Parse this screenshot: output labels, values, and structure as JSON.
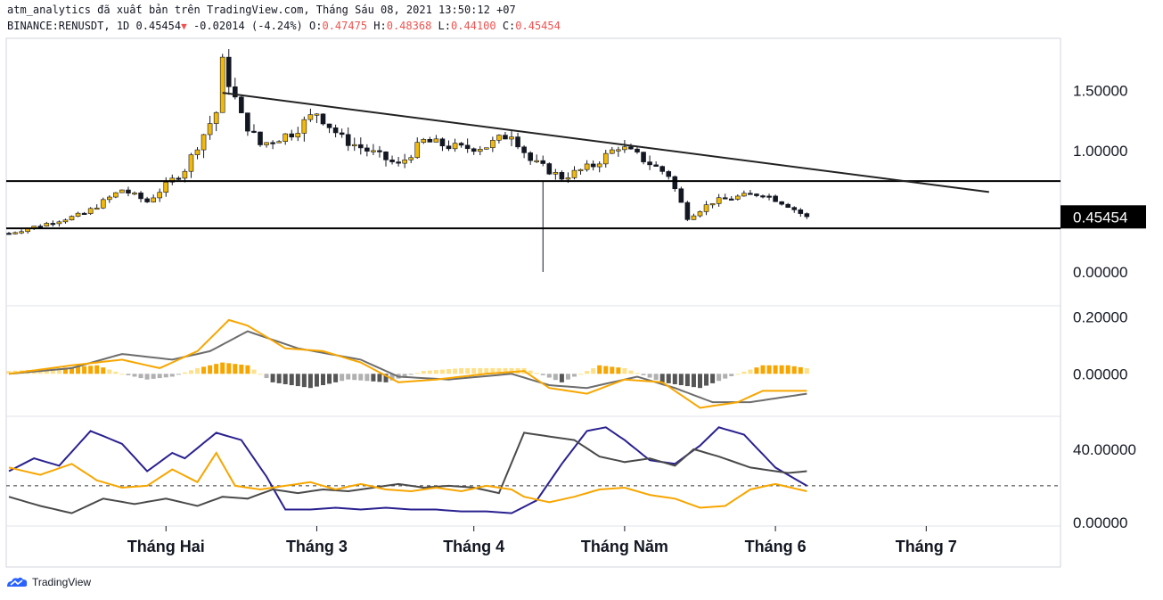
{
  "header": {
    "publisher_line": "atm_analytics đã xuất bản trên TradingView.com, Tháng Sáu 08, 2021 13:50:12 +07",
    "symbol": "BINANCE:RENUSDT, 1D",
    "last": "0.45454",
    "change": "-0.02014 (-4.24%)",
    "o_label": "O:",
    "o": "0.47475",
    "h_label": "H:",
    "h": "0.48368",
    "l_label": "L:",
    "l": "0.44100",
    "c_label": "C:",
    "c": "0.45454"
  },
  "footer": {
    "brand": "TradingView"
  },
  "colors": {
    "up": "#f0b90b",
    "down": "#131722",
    "macd": "#f7a600",
    "signal": "#6d6d6d",
    "rsi_line": "#2a2190",
    "axis": "#131722"
  },
  "chart_data": [
    {
      "type": "candlestick",
      "symbol": "BINANCE:RENUSDT",
      "interval": "1D",
      "x_ticks": [
        "Tháng Hai",
        "Tháng 3",
        "Tháng 4",
        "Tháng Năm",
        "Tháng 6",
        "Tháng 7"
      ],
      "y_ticks": [
        "1.50000",
        "1.00000",
        "0.00000"
      ],
      "y_tick_values": [
        1.5,
        1.0,
        0.0
      ],
      "ylim": [
        -0.28,
        1.93
      ],
      "last_price_label": "0.45454",
      "last_price": 0.45454,
      "n_days": 128,
      "horizontal_levels": [
        0.75,
        0.36
      ],
      "trendline": {
        "from": {
          "day": 34,
          "price": 1.48
        },
        "to": {
          "day": 156,
          "price": 0.66
        }
      },
      "key_prices": [
        {
          "day": 0,
          "price": 0.32
        },
        {
          "day": 12,
          "price": 0.48
        },
        {
          "day": 18,
          "price": 0.68
        },
        {
          "day": 22,
          "price": 0.58
        },
        {
          "day": 28,
          "price": 0.85
        },
        {
          "day": 30,
          "price": 1.05
        },
        {
          "day": 33,
          "price": 1.32
        },
        {
          "day": 34,
          "price": 1.72
        },
        {
          "day": 37,
          "price": 1.28
        },
        {
          "day": 40,
          "price": 1.05
        },
        {
          "day": 45,
          "price": 1.15
        },
        {
          "day": 49,
          "price": 1.32
        },
        {
          "day": 53,
          "price": 1.1
        },
        {
          "day": 58,
          "price": 0.98
        },
        {
          "day": 62,
          "price": 0.88
        },
        {
          "day": 66,
          "price": 1.08
        },
        {
          "day": 72,
          "price": 1.02
        },
        {
          "day": 76,
          "price": 1.04
        },
        {
          "day": 80,
          "price": 1.15
        },
        {
          "day": 83,
          "price": 0.92
        },
        {
          "day": 88,
          "price": 0.78
        },
        {
          "day": 93,
          "price": 0.88
        },
        {
          "day": 97,
          "price": 1.04
        },
        {
          "day": 100,
          "price": 0.96
        },
        {
          "day": 105,
          "price": 0.8
        },
        {
          "day": 108,
          "price": 0.45
        },
        {
          "day": 112,
          "price": 0.58
        },
        {
          "day": 116,
          "price": 0.62
        },
        {
          "day": 120,
          "price": 0.65
        },
        {
          "day": 124,
          "price": 0.55
        },
        {
          "day": 127,
          "price": 0.45
        }
      ]
    },
    {
      "type": "line",
      "title": "",
      "y_ticks": [
        "0.20000",
        "0.00000"
      ],
      "y_tick_values": [
        0.2,
        0.0
      ],
      "ylim": [
        -0.15,
        0.24
      ],
      "series": [
        {
          "key": "macd",
          "points": [
            [
              0,
              0.0
            ],
            [
              10,
              0.03
            ],
            [
              18,
              0.05
            ],
            [
              24,
              0.02
            ],
            [
              30,
              0.08
            ],
            [
              35,
              0.19
            ],
            [
              38,
              0.17
            ],
            [
              44,
              0.09
            ],
            [
              50,
              0.08
            ],
            [
              56,
              0.04
            ],
            [
              62,
              -0.03
            ],
            [
              68,
              -0.02
            ],
            [
              76,
              0.0
            ],
            [
              82,
              0.01
            ],
            [
              86,
              -0.05
            ],
            [
              92,
              -0.07
            ],
            [
              98,
              -0.02
            ],
            [
              104,
              -0.03
            ],
            [
              110,
              -0.12
            ],
            [
              116,
              -0.1
            ],
            [
              120,
              -0.06
            ],
            [
              127,
              -0.06
            ]
          ]
        },
        {
          "key": "signal",
          "points": [
            [
              0,
              0.0
            ],
            [
              10,
              0.02
            ],
            [
              18,
              0.07
            ],
            [
              26,
              0.05
            ],
            [
              32,
              0.08
            ],
            [
              38,
              0.15
            ],
            [
              46,
              0.09
            ],
            [
              56,
              0.05
            ],
            [
              62,
              -0.01
            ],
            [
              70,
              -0.02
            ],
            [
              80,
              0.0
            ],
            [
              86,
              -0.04
            ],
            [
              92,
              -0.05
            ],
            [
              100,
              -0.01
            ],
            [
              106,
              -0.05
            ],
            [
              112,
              -0.1
            ],
            [
              118,
              -0.1
            ],
            [
              127,
              -0.07
            ]
          ]
        },
        {
          "key": "histogram",
          "type": "bar",
          "points": [
            [
              0,
              0.01
            ],
            [
              8,
              0.02
            ],
            [
              14,
              0.03
            ],
            [
              18,
              0.0
            ],
            [
              22,
              -0.02
            ],
            [
              26,
              -0.01
            ],
            [
              30,
              0.02
            ],
            [
              34,
              0.04
            ],
            [
              38,
              0.03
            ],
            [
              42,
              -0.03
            ],
            [
              48,
              -0.05
            ],
            [
              54,
              -0.02
            ],
            [
              60,
              -0.03
            ],
            [
              66,
              0.01
            ],
            [
              72,
              0.02
            ],
            [
              78,
              0.02
            ],
            [
              82,
              0.02
            ],
            [
              88,
              -0.03
            ],
            [
              94,
              0.03
            ],
            [
              98,
              0.02
            ],
            [
              104,
              -0.03
            ],
            [
              110,
              -0.05
            ],
            [
              116,
              0.0
            ],
            [
              120,
              0.03
            ],
            [
              124,
              0.03
            ],
            [
              127,
              0.02
            ]
          ]
        }
      ]
    },
    {
      "type": "line",
      "title": "",
      "y_ticks": [
        "40.00000",
        "0.00000"
      ],
      "y_tick_values": [
        40,
        0
      ],
      "ylim": [
        -2,
        58
      ],
      "dashed_level": 20,
      "series": [
        {
          "key": "line_a",
          "color": "#2a2190",
          "points": [
            [
              0,
              28
            ],
            [
              4,
              35
            ],
            [
              8,
              31
            ],
            [
              13,
              50
            ],
            [
              18,
              43
            ],
            [
              22,
              28
            ],
            [
              26,
              38
            ],
            [
              28,
              35
            ],
            [
              33,
              49
            ],
            [
              37,
              45
            ],
            [
              41,
              25
            ],
            [
              44,
              7
            ],
            [
              48,
              7
            ],
            [
              52,
              8
            ],
            [
              56,
              7
            ],
            [
              60,
              8
            ],
            [
              64,
              7
            ],
            [
              68,
              7
            ],
            [
              72,
              6
            ],
            [
              76,
              6
            ],
            [
              80,
              5
            ],
            [
              84,
              12
            ],
            [
              88,
              32
            ],
            [
              92,
              50
            ],
            [
              95,
              52
            ],
            [
              98,
              45
            ],
            [
              102,
              34
            ],
            [
              106,
              32
            ],
            [
              110,
              42
            ],
            [
              113,
              52
            ],
            [
              117,
              48
            ],
            [
              122,
              30
            ],
            [
              127,
              20
            ]
          ]
        },
        {
          "key": "line_b",
          "color": "#4a4a4a",
          "points": [
            [
              0,
              14
            ],
            [
              5,
              9
            ],
            [
              10,
              5
            ],
            [
              15,
              13
            ],
            [
              20,
              10
            ],
            [
              25,
              13
            ],
            [
              30,
              9
            ],
            [
              34,
              14
            ],
            [
              38,
              13
            ],
            [
              42,
              18
            ],
            [
              46,
              16
            ],
            [
              50,
              18
            ],
            [
              54,
              17
            ],
            [
              58,
              19
            ],
            [
              62,
              21
            ],
            [
              66,
              19
            ],
            [
              70,
              20
            ],
            [
              74,
              19
            ],
            [
              78,
              16
            ],
            [
              82,
              49
            ],
            [
              86,
              47
            ],
            [
              90,
              45
            ],
            [
              94,
              36
            ],
            [
              98,
              33
            ],
            [
              102,
              35
            ],
            [
              106,
              31
            ],
            [
              109,
              40
            ],
            [
              113,
              36
            ],
            [
              118,
              30
            ],
            [
              124,
              27
            ],
            [
              127,
              28
            ]
          ]
        },
        {
          "key": "line_c",
          "color": "#f7a600",
          "points": [
            [
              0,
              30
            ],
            [
              5,
              26
            ],
            [
              10,
              32
            ],
            [
              14,
              23
            ],
            [
              18,
              19
            ],
            [
              22,
              20
            ],
            [
              26,
              29
            ],
            [
              30,
              22
            ],
            [
              33,
              38
            ],
            [
              36,
              20
            ],
            [
              40,
              18
            ],
            [
              44,
              20
            ],
            [
              48,
              22
            ],
            [
              52,
              18
            ],
            [
              56,
              21
            ],
            [
              60,
              18
            ],
            [
              64,
              17
            ],
            [
              68,
              19
            ],
            [
              72,
              17
            ],
            [
              76,
              20
            ],
            [
              80,
              18
            ],
            [
              82,
              14
            ],
            [
              86,
              11
            ],
            [
              90,
              14
            ],
            [
              94,
              18
            ],
            [
              98,
              19
            ],
            [
              102,
              15
            ],
            [
              106,
              13
            ],
            [
              110,
              8
            ],
            [
              114,
              9
            ],
            [
              118,
              18
            ],
            [
              122,
              21
            ],
            [
              127,
              17
            ]
          ]
        }
      ]
    }
  ]
}
